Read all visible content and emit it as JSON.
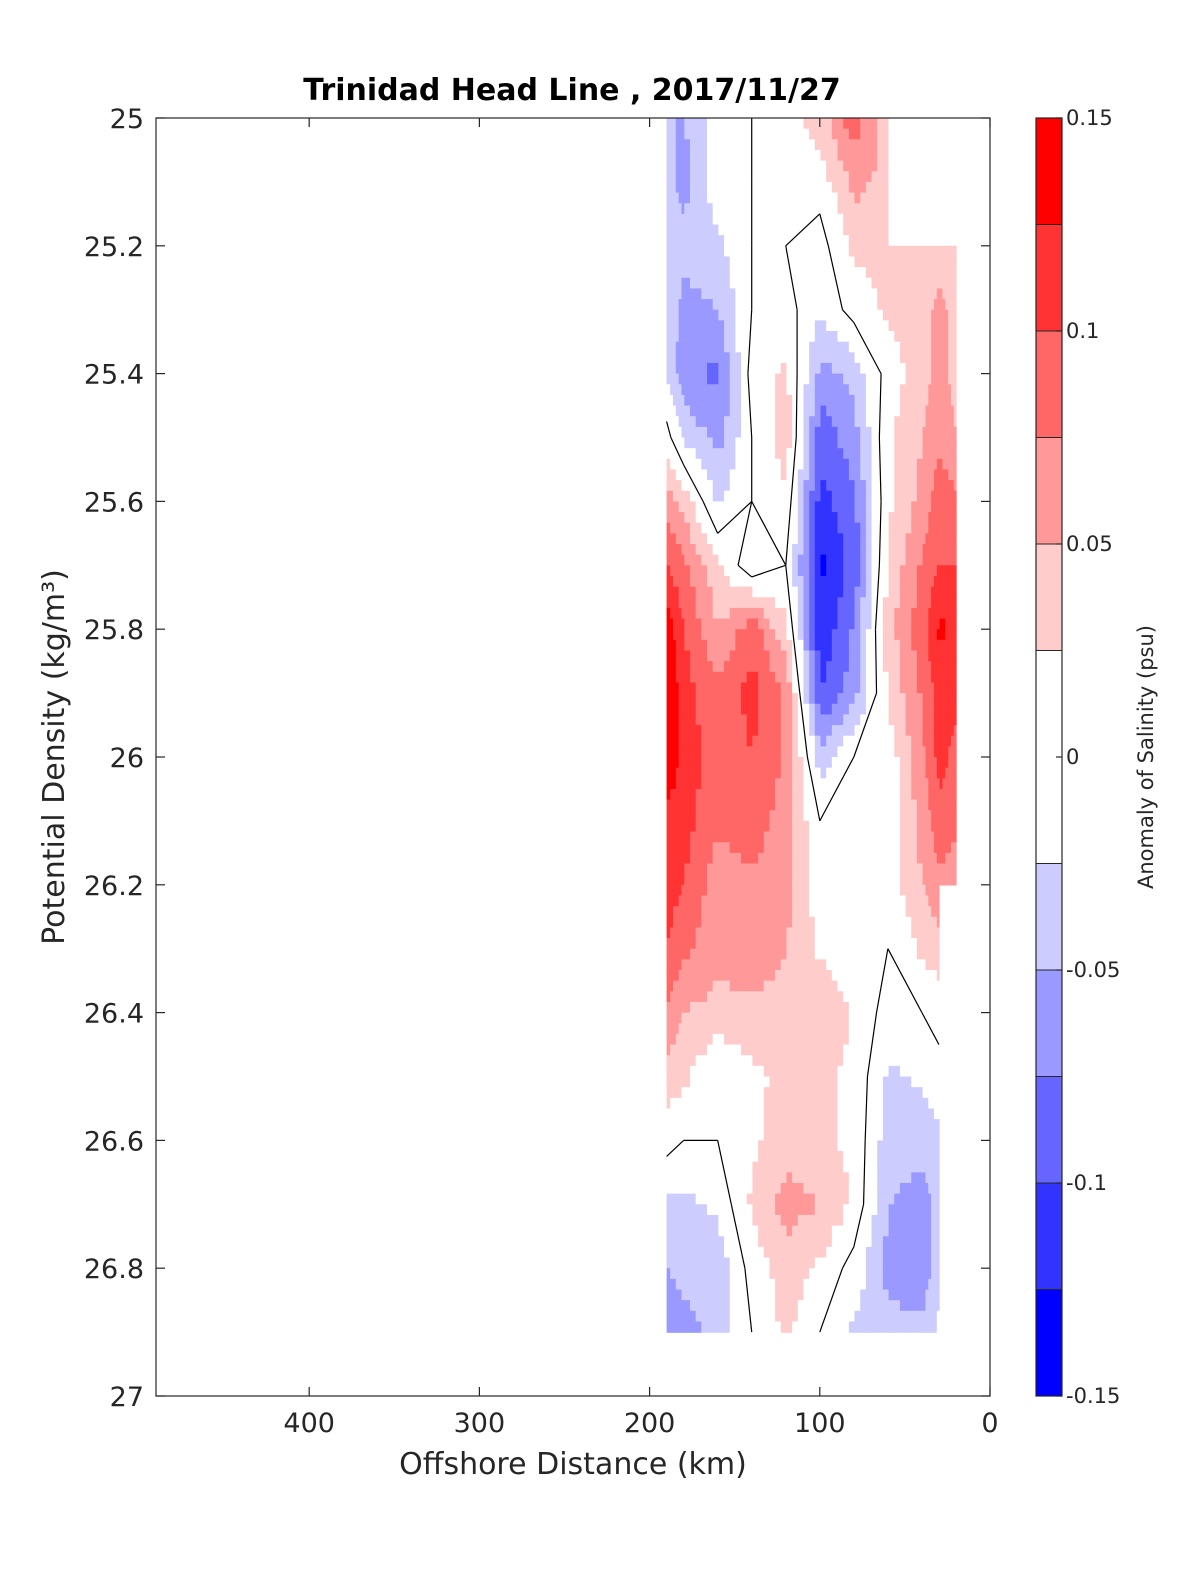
{
  "chart_data": {
    "type": "contour",
    "title": "Trinidad Head Line , 2017/11/27",
    "xlabel": "Offshore Distance (km)",
    "ylabel": "Potential Density (kg/m³)",
    "xlim": [
      490,
      0
    ],
    "ylim": [
      27,
      25
    ],
    "x_reversed": true,
    "y_reversed": true,
    "x_ticks": [
      400,
      300,
      200,
      100,
      0
    ],
    "y_ticks": [
      25,
      25.2,
      25.4,
      25.6,
      25.8,
      26,
      26.2,
      26.4,
      26.6,
      26.8,
      27
    ],
    "grid": false,
    "colorbar": {
      "label": "Anomaly of Salinity (psu)",
      "range": [
        -0.15,
        0.15
      ],
      "levels": [
        -0.15,
        -0.125,
        -0.1,
        -0.075,
        -0.05,
        -0.025,
        0.025,
        0.05,
        0.075,
        0.1,
        0.125,
        0.15
      ],
      "tick_values": [
        0.15,
        0.1,
        0.05,
        0,
        -0.05,
        -0.1,
        -0.15
      ],
      "tick_labels": [
        "0.15",
        "0.1",
        "0.05",
        "0",
        "-0.05",
        "-0.1",
        "-0.15"
      ],
      "colors": [
        "#0000ff",
        "#3333ff",
        "#6666ff",
        "#9999ff",
        "#ccccff",
        "#ffffff",
        "#ffcccc",
        "#ff9999",
        "#ff6666",
        "#ff3333",
        "#ff0000"
      ]
    },
    "stations_km": [
      20,
      30,
      40,
      60,
      80,
      100,
      120,
      140,
      160,
      180,
      190
    ],
    "density_levels": [
      25.0,
      25.1,
      25.2,
      25.3,
      25.4,
      25.5,
      25.6,
      25.7,
      25.8,
      25.9,
      26.0,
      26.1,
      26.2,
      26.3,
      26.4,
      26.5,
      26.6,
      26.7,
      26.8,
      26.9
    ],
    "anomaly_grid": [
      [
        null,
        null,
        null,
        0.03,
        0.09,
        0.04,
        0.01,
        0.0,
        -0.01,
        -0.05,
        -0.05
      ],
      [
        null,
        null,
        null,
        0.04,
        0.06,
        0.01,
        0.01,
        0.0,
        -0.01,
        -0.06,
        -0.04
      ],
      [
        0.03,
        0.03,
        0.03,
        0.03,
        0.03,
        -0.01,
        0.0,
        0.0,
        -0.03,
        -0.04,
        -0.04
      ],
      [
        0.04,
        0.06,
        0.04,
        0.03,
        0.01,
        -0.02,
        0.01,
        0.0,
        -0.05,
        -0.06,
        -0.03
      ],
      [
        0.04,
        0.06,
        0.04,
        0.01,
        -0.04,
        -0.06,
        0.03,
        0.01,
        -0.08,
        -0.07,
        -0.03
      ],
      [
        0.05,
        0.07,
        0.05,
        0.02,
        -0.06,
        -0.09,
        0.04,
        0.0,
        -0.06,
        -0.03,
        0.01
      ],
      [
        0.08,
        0.09,
        0.06,
        0.02,
        -0.08,
        -0.11,
        0.02,
        0.0,
        -0.03,
        0.04,
        0.06
      ],
      [
        0.1,
        0.1,
        0.08,
        0.03,
        -0.09,
        -0.13,
        0.0,
        -0.02,
        0.03,
        0.08,
        0.1
      ],
      [
        0.12,
        0.13,
        0.09,
        0.04,
        -0.07,
        -0.12,
        0.03,
        0.09,
        0.05,
        0.1,
        0.14
      ],
      [
        0.11,
        0.11,
        0.08,
        0.03,
        -0.06,
        -0.1,
        0.07,
        0.11,
        0.08,
        0.11,
        0.15
      ],
      [
        0.09,
        0.11,
        0.07,
        0.01,
        0.0,
        -0.04,
        0.07,
        0.1,
        0.08,
        0.12,
        0.14
      ],
      [
        0.08,
        0.09,
        0.06,
        0.01,
        0.01,
        0.0,
        0.06,
        0.09,
        0.08,
        0.11,
        0.12
      ],
      [
        0.06,
        0.07,
        0.05,
        0.01,
        0.0,
        0.01,
        0.06,
        0.07,
        0.06,
        0.1,
        0.11
      ],
      [
        null,
        0.04,
        0.03,
        0.0,
        0.01,
        0.02,
        0.05,
        0.07,
        0.06,
        0.08,
        0.1
      ],
      [
        null,
        0.01,
        0.0,
        -0.01,
        0.02,
        0.05,
        0.04,
        0.04,
        0.04,
        0.05,
        0.07
      ],
      [
        null,
        -0.01,
        -0.02,
        -0.03,
        0.02,
        0.03,
        0.03,
        0.02,
        0.0,
        0.03,
        0.04
      ],
      [
        null,
        -0.03,
        -0.04,
        -0.04,
        0.02,
        0.03,
        0.04,
        0.02,
        0.0,
        0.0,
        0.01
      ],
      [
        null,
        -0.04,
        -0.06,
        -0.05,
        0.02,
        0.05,
        0.06,
        0.03,
        -0.02,
        -0.03,
        -0.03
      ],
      [
        null,
        -0.03,
        -0.07,
        -0.06,
        -0.01,
        0.02,
        0.04,
        0.01,
        -0.04,
        -0.04,
        -0.05
      ],
      [
        null,
        -0.02,
        -0.04,
        -0.04,
        -0.03,
        0.0,
        0.03,
        0.0,
        -0.04,
        -0.06,
        -0.07
      ]
    ]
  }
}
